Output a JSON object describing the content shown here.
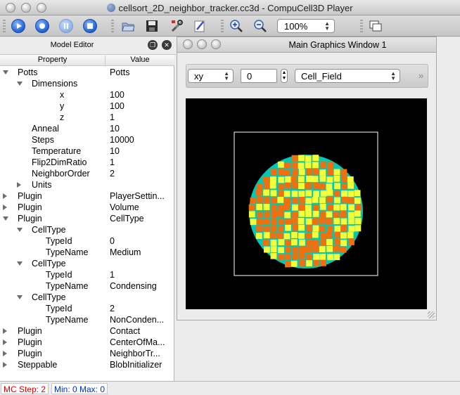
{
  "window": {
    "title": "cellsort_2D_neighbor_tracker.cc3d - CompuCell3D Player"
  },
  "toolbar": {
    "icons": [
      "run-icon",
      "step-icon",
      "pause-icon",
      "stop-icon",
      "open-folder-icon",
      "save-icon",
      "tools-icon",
      "edit-icon",
      "zoom-in-icon",
      "zoom-out-icon",
      "layout-icon"
    ],
    "zoom_value": "100%"
  },
  "model_editor": {
    "title": "Model Editor",
    "col_property": "Property",
    "col_value": "Value",
    "rows": [
      {
        "prop": "Potts",
        "val": "Potts"
      },
      {
        "prop": "Dimensions",
        "val": ""
      },
      {
        "prop": "x",
        "val": "100"
      },
      {
        "prop": "y",
        "val": "100"
      },
      {
        "prop": "z",
        "val": "1"
      },
      {
        "prop": "Anneal",
        "val": "10"
      },
      {
        "prop": "Steps",
        "val": "10000"
      },
      {
        "prop": "Temperature",
        "val": "10"
      },
      {
        "prop": "Flip2DimRatio",
        "val": "1"
      },
      {
        "prop": "NeighborOrder",
        "val": "2"
      },
      {
        "prop": "Units",
        "val": ""
      },
      {
        "prop": "Plugin",
        "val": "PlayerSettin..."
      },
      {
        "prop": "Plugin",
        "val": "Volume"
      },
      {
        "prop": "Plugin",
        "val": "CellType"
      },
      {
        "prop": "CellType",
        "val": ""
      },
      {
        "prop": "TypeId",
        "val": "0"
      },
      {
        "prop": "TypeName",
        "val": "Medium"
      },
      {
        "prop": "CellType",
        "val": ""
      },
      {
        "prop": "TypeId",
        "val": "1"
      },
      {
        "prop": "TypeName",
        "val": "Condensing"
      },
      {
        "prop": "CellType",
        "val": ""
      },
      {
        "prop": "TypeId",
        "val": "2"
      },
      {
        "prop": "TypeName",
        "val": "NonConden..."
      },
      {
        "prop": "Plugin",
        "val": "Contact"
      },
      {
        "prop": "Plugin",
        "val": "CenterOfMa..."
      },
      {
        "prop": "Plugin",
        "val": "NeighborTr..."
      },
      {
        "prop": "Steppable",
        "val": "BlobInitializer"
      }
    ]
  },
  "graphics_window": {
    "title": "Main Graphics Window 1",
    "projection": "xy",
    "slice": "0",
    "field": "Cell_Field",
    "colors": {
      "background": "#000000",
      "box": "#ffffff",
      "condensing": "#f07010",
      "nonconden": "#f4ff3a",
      "border": "#00c8b4"
    }
  },
  "status": {
    "mc_step": "MC Step: 2",
    "min_max": "Min: 0 Max: 0"
  }
}
